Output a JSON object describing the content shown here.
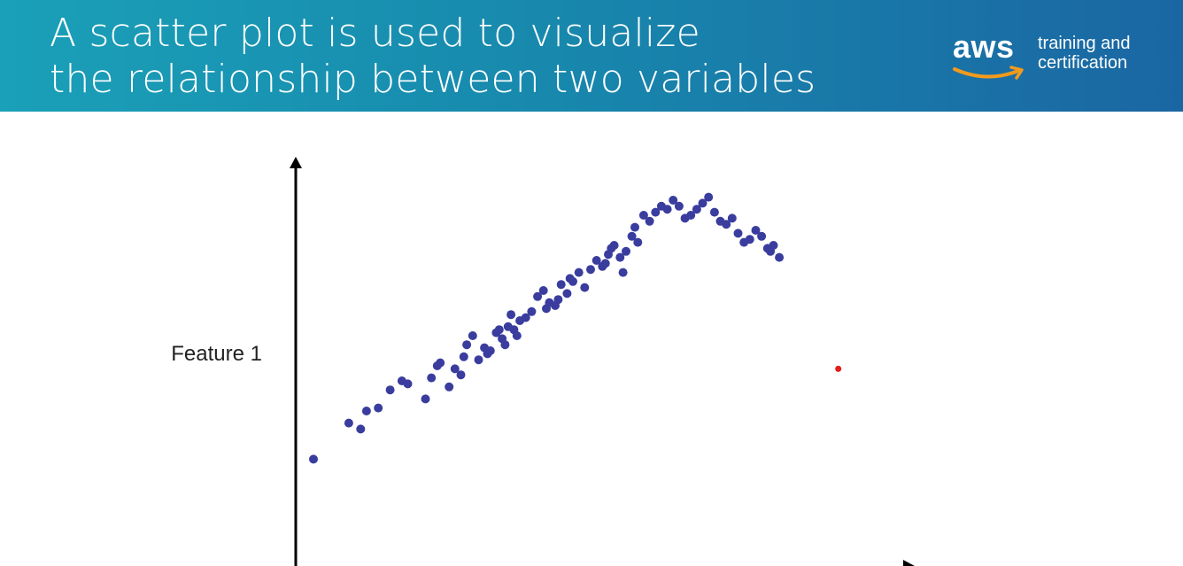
{
  "slide": {
    "title_line1": "A scatter plot is used to visualize",
    "title_line2": "the relationship between two variables"
  },
  "logo": {
    "wordmark": "aws",
    "line1": "training and",
    "line2": "certification",
    "accent_color": "#f29a1d"
  },
  "colors": {
    "banner_start": "#1aa0b8",
    "banner_end": "#1a66a3",
    "point_color": "#3a3d9e",
    "marker_color": "#e41b1b"
  },
  "chart_data": {
    "type": "scatter",
    "title": "",
    "xlabel": "",
    "ylabel": "Feature 1",
    "xlim": [
      0,
      100
    ],
    "ylim": [
      0,
      100
    ],
    "grid": false,
    "series": [
      {
        "x": [
          3,
          9,
          11,
          12,
          14,
          16,
          18,
          19,
          22,
          23,
          24,
          24.5,
          26,
          27,
          28,
          28.5,
          29,
          30,
          31,
          32,
          32.5,
          33,
          34,
          34.5,
          35,
          35.5,
          36,
          36.5,
          37,
          37.5,
          38,
          39,
          40,
          41,
          42,
          42.5,
          43,
          44,
          44.5,
          45,
          46,
          46.5,
          47,
          48,
          49,
          50,
          51,
          52,
          52.5,
          53,
          53.5,
          54,
          55,
          55.5,
          56,
          57,
          57.5,
          58,
          59,
          60,
          61,
          62,
          63,
          64,
          65,
          66,
          67,
          68,
          69,
          70,
          71,
          72,
          73,
          74,
          75,
          76,
          77,
          78,
          79,
          80,
          80.5,
          81,
          82
        ],
        "y": [
          14,
          26,
          24,
          30,
          31,
          37,
          40,
          39,
          34,
          41,
          45,
          46,
          38,
          44,
          42,
          48,
          52,
          55,
          47,
          51,
          49,
          50,
          56,
          57,
          54,
          52,
          58,
          62,
          57,
          55,
          60,
          61,
          63,
          68,
          70,
          64,
          66,
          65,
          67,
          72,
          69,
          74,
          73,
          76,
          71,
          77,
          80,
          78,
          79,
          82,
          84,
          85,
          81,
          76,
          83,
          88,
          91,
          86,
          95,
          93,
          96,
          98,
          97,
          100,
          98,
          94,
          95,
          97,
          99,
          101,
          96,
          93,
          92,
          94,
          89,
          86,
          87,
          90,
          88,
          84,
          83,
          85,
          81
        ]
      }
    ],
    "annotations": [
      {
        "type": "marker",
        "x": 92,
        "y": 44
      }
    ]
  }
}
